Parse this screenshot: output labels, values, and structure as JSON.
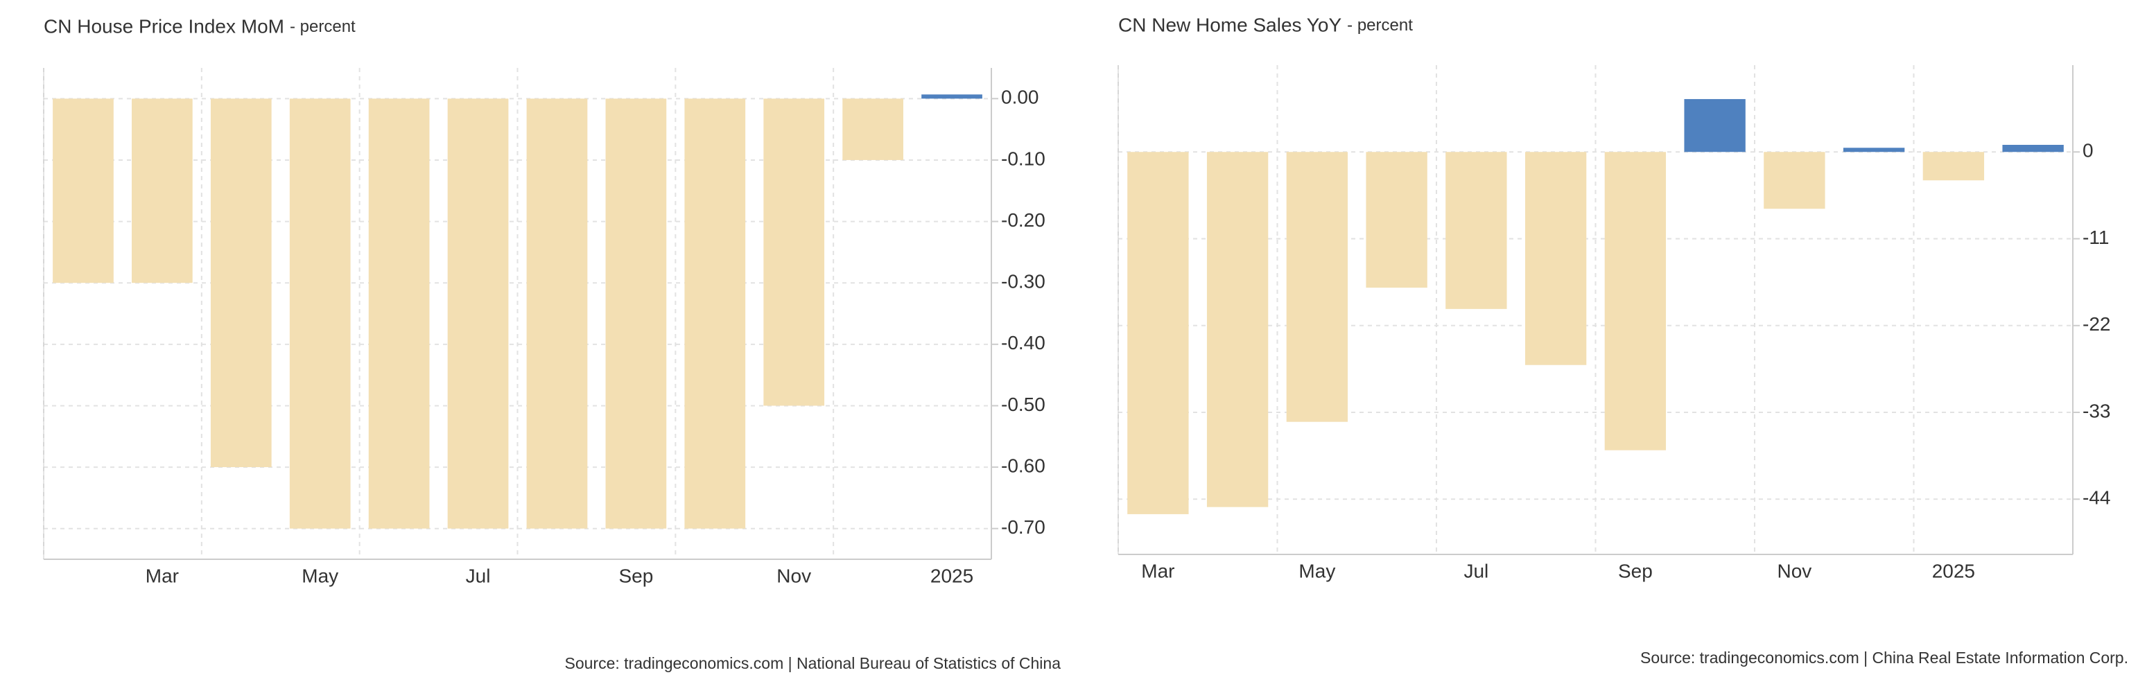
{
  "chart_data": [
    {
      "type": "bar",
      "title": "CN House Price Index MoM",
      "subtitle": "- percent",
      "categories": [
        null,
        "Mar",
        null,
        "May",
        null,
        "Jul",
        null,
        "Sep",
        null,
        "Nov",
        null,
        "2025"
      ],
      "values": [
        -0.3,
        -0.3,
        -0.6,
        -0.7,
        -0.7,
        -0.7,
        -0.7,
        -0.7,
        -0.7,
        -0.5,
        -0.1,
        0.0
      ],
      "ylim": [
        -0.75,
        0.05
      ],
      "yticks": [
        {
          "value": 0,
          "label": "0.00"
        },
        {
          "value": -0.1,
          "label": "-0.10"
        },
        {
          "value": -0.2,
          "label": "-0.20"
        },
        {
          "value": -0.3,
          "label": "-0.30"
        },
        {
          "value": -0.4,
          "label": "-0.40"
        },
        {
          "value": -0.5,
          "label": "-0.50"
        },
        {
          "value": -0.6,
          "label": "-0.60"
        },
        {
          "value": -0.7,
          "label": "-0.70"
        }
      ],
      "positive_color": "#4f81bf",
      "negative_color": "#f3dfb3",
      "grid": true,
      "source": "Source: tradingeconomics.com | National Bureau of Statistics of China"
    },
    {
      "type": "bar",
      "title": "CN New Home Sales YoY",
      "subtitle": "- percent",
      "categories": [
        "Mar",
        null,
        "May",
        null,
        "Jul",
        null,
        "Sep",
        null,
        "Nov",
        null,
        "2025",
        null
      ],
      "values": [
        -45.9,
        -45,
        -34.2,
        -17.2,
        -19.9,
        -27,
        -37.8,
        6.7,
        -7.2,
        0.5,
        -3.6,
        0.9
      ],
      "ylim": [
        -51,
        11
      ],
      "yticks": [
        0,
        -11,
        -22,
        -33,
        -44
      ],
      "positive_color": "#4f81bf",
      "negative_color": "#f3dfb3",
      "grid": true,
      "source": "Source: tradingeconomics.com | China Real Estate Information Corp."
    }
  ]
}
